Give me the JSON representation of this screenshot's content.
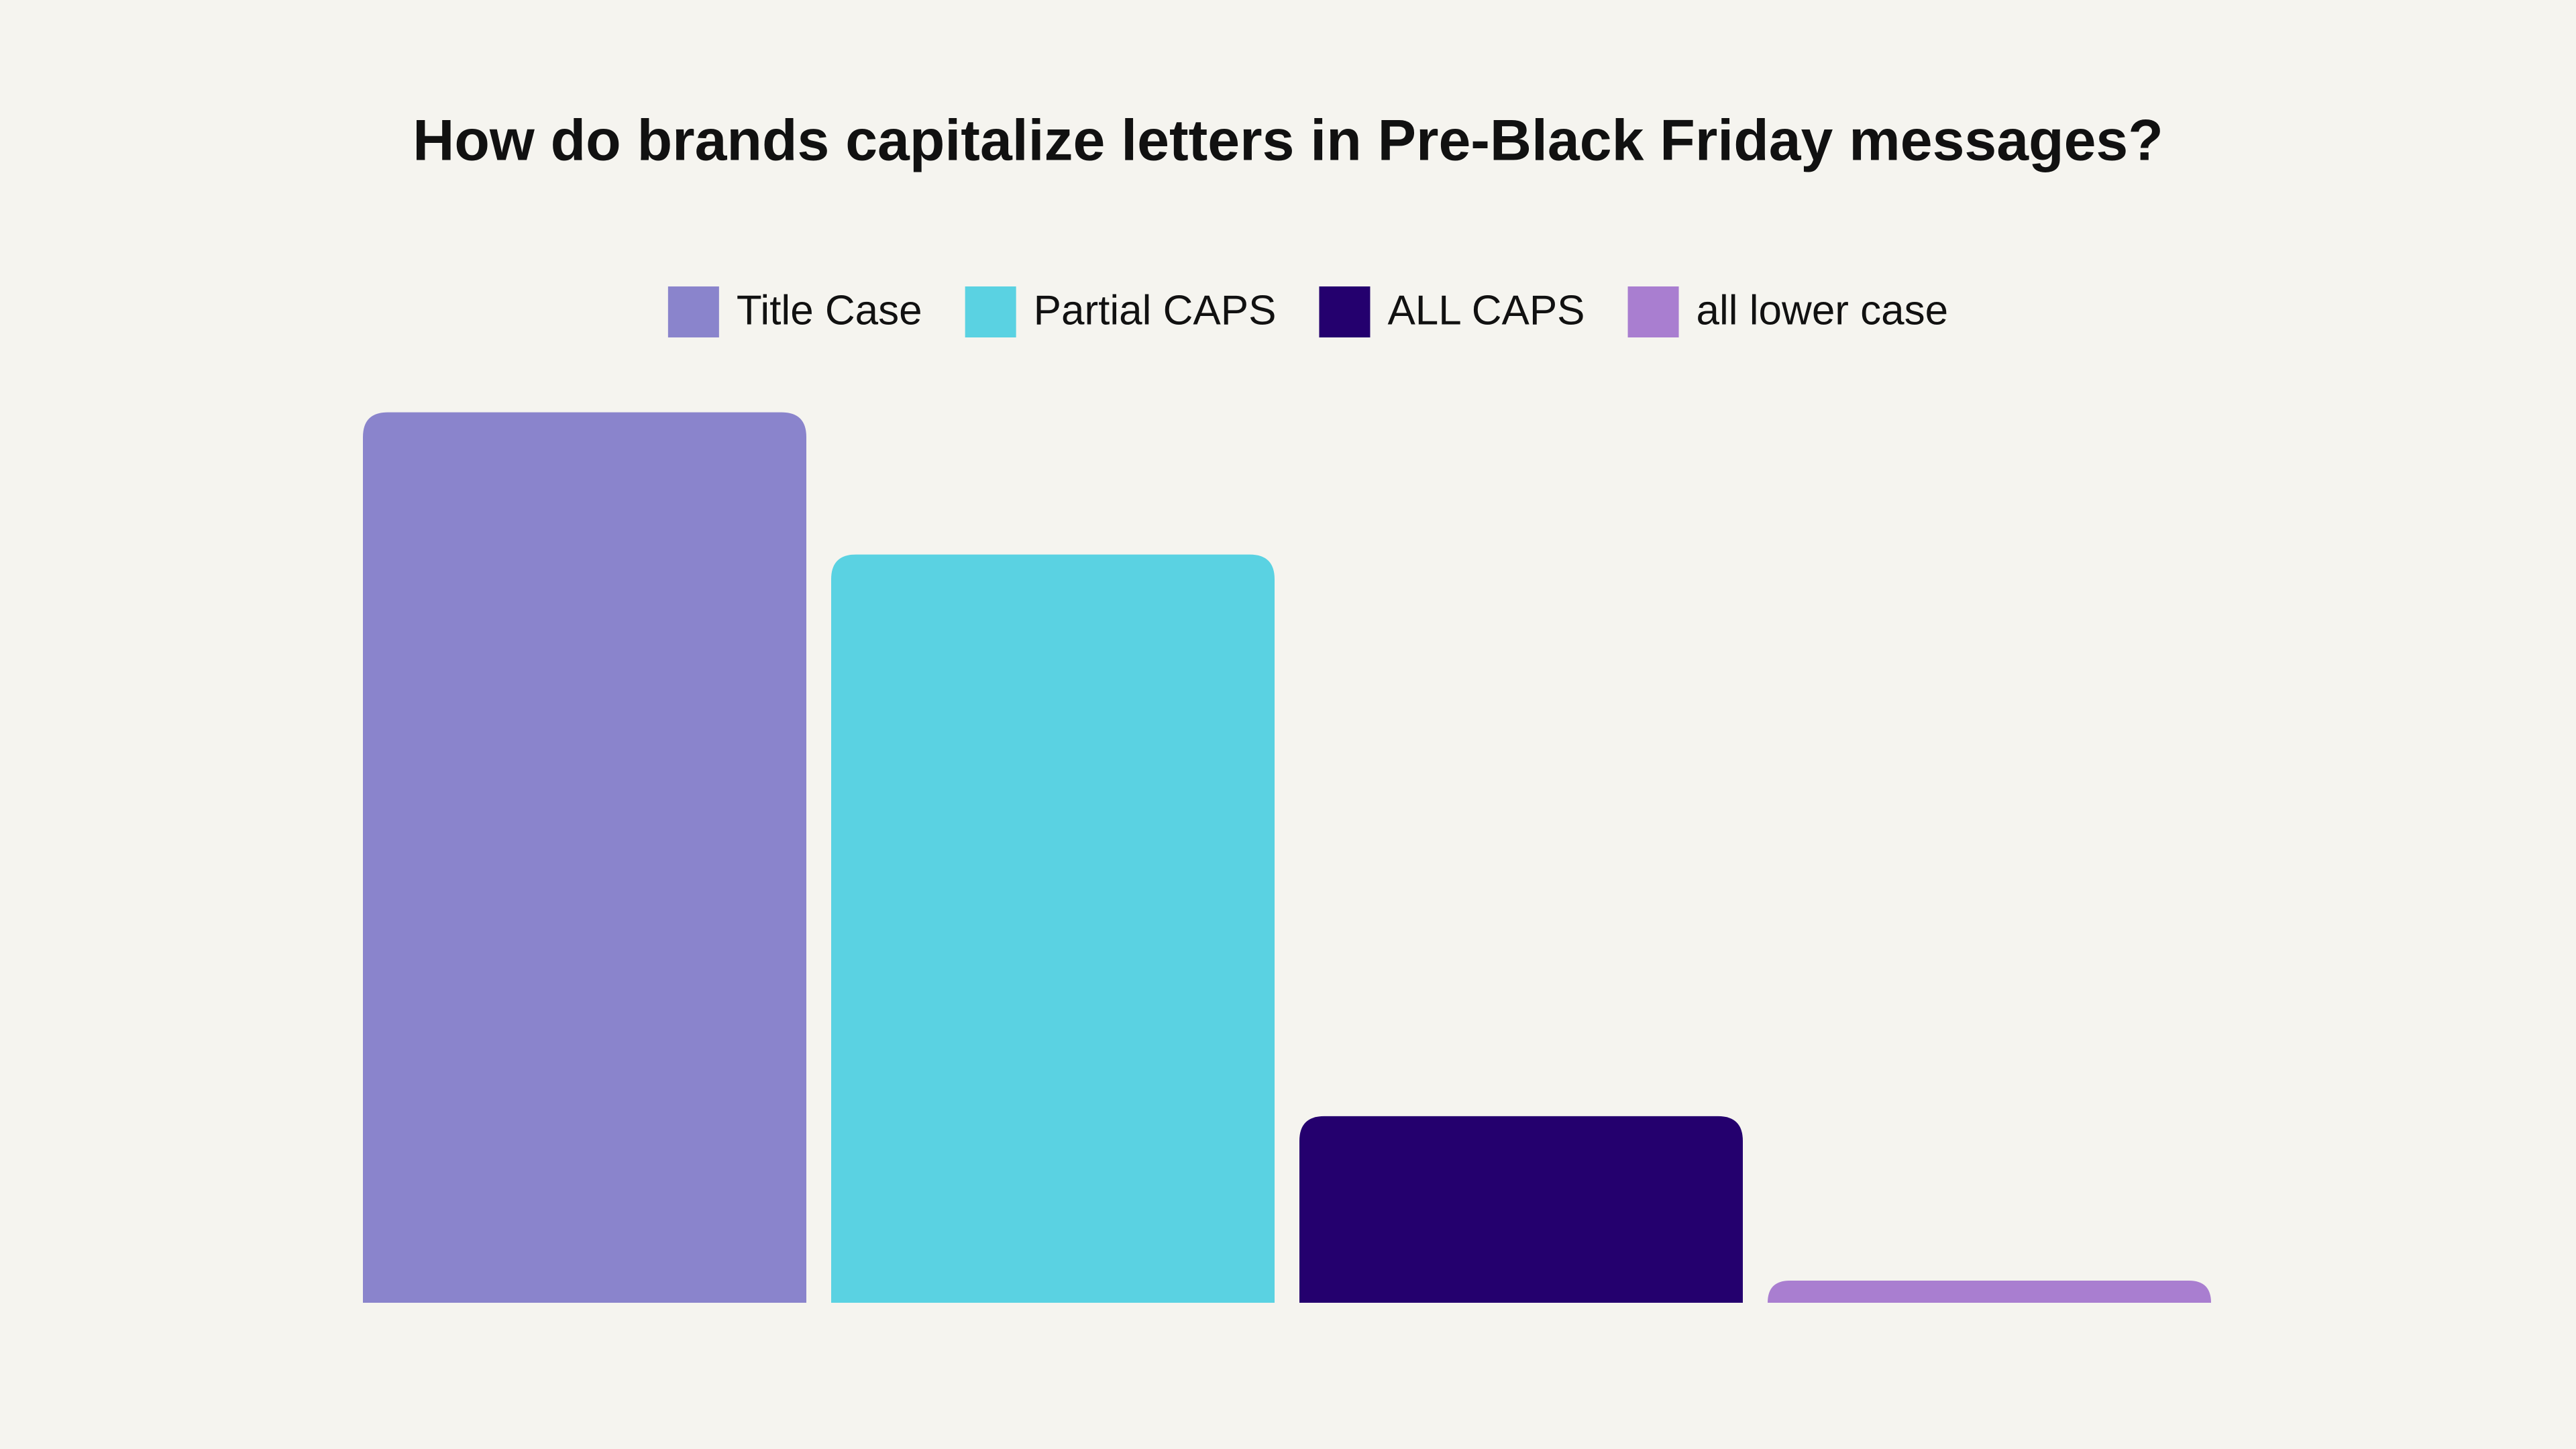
{
  "chart_data": {
    "type": "bar",
    "title": "How do brands capitalize letters in Pre-Black Friday messages?",
    "categories": [
      null
    ],
    "series": [
      {
        "name": "Title Case",
        "color": "#8a84cc",
        "values": [
          48.2
        ]
      },
      {
        "name": "Partial CAPS",
        "color": "#5ad2e2",
        "values": [
          40.5
        ]
      },
      {
        "name": "ALL CAPS",
        "color": "#24006e",
        "values": [
          10.1
        ]
      },
      {
        "name": "all lower case",
        "color": "#a97ed0",
        "values": [
          1.2
        ]
      }
    ],
    "ylim": [
      0,
      50
    ]
  }
}
